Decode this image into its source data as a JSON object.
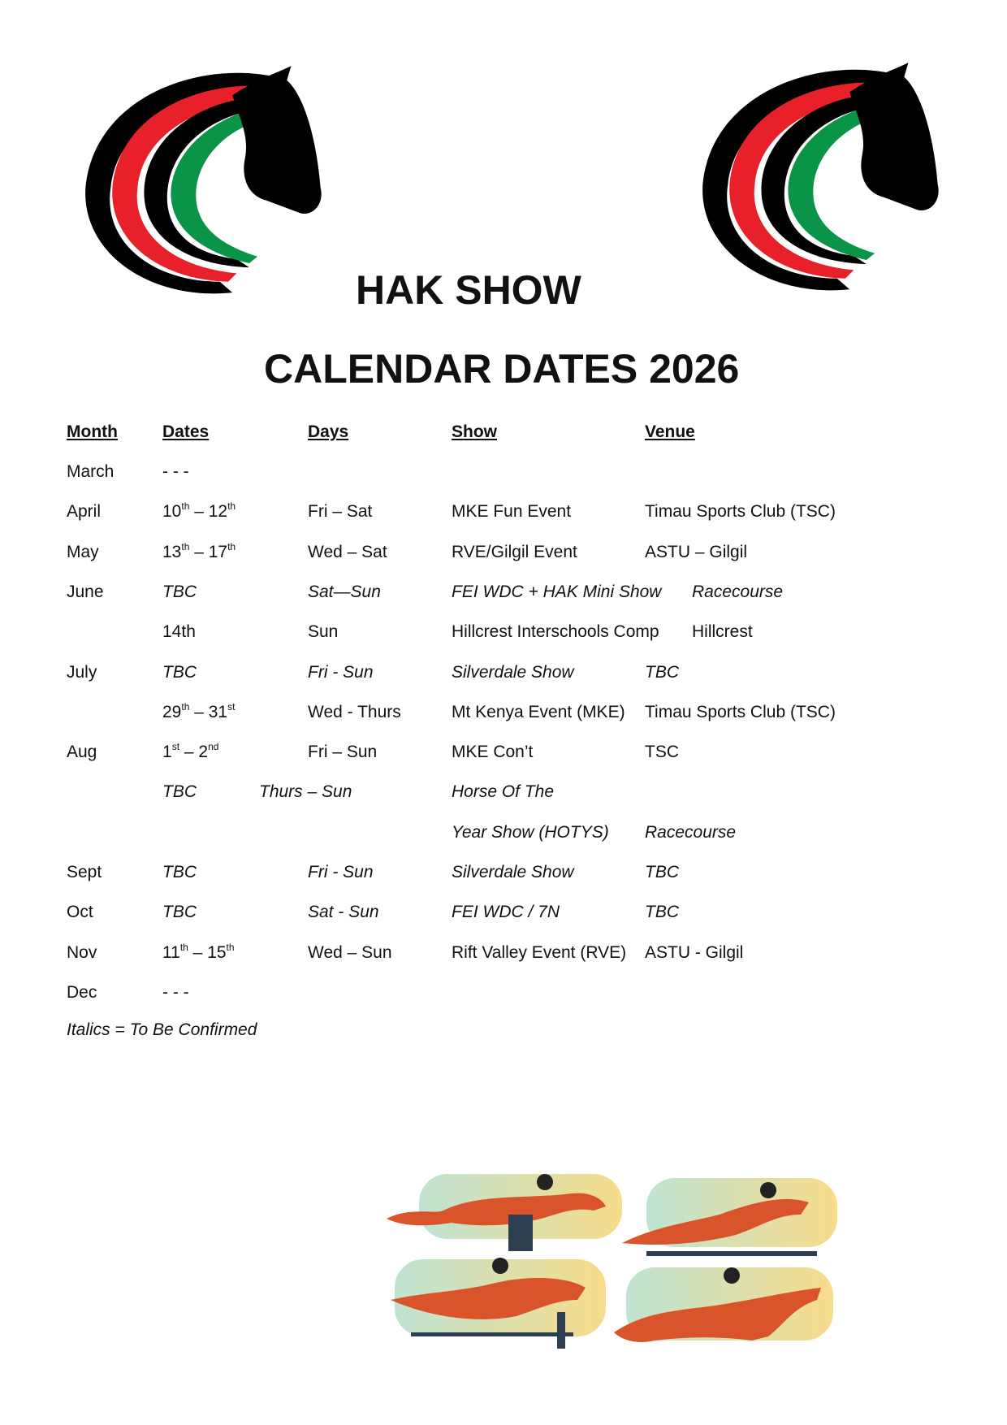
{
  "title_line1": "HAK SHOW",
  "title_line2": "CALENDAR DATES 2026",
  "logo_colors": {
    "black": "#000000",
    "red": "#e8202a",
    "green": "#0a9447"
  },
  "headers": {
    "month": "Month",
    "dates": "Dates",
    "days": "Days",
    "show": "Show",
    "venue": "Venue"
  },
  "rows": [
    {
      "month": "March",
      "dates": "- - -",
      "days": "",
      "show": "",
      "venue": "",
      "italic": false
    },
    {
      "month": "April",
      "d1": "10",
      "s1": "th",
      "sep": " – ",
      "d2": "12",
      "s2": "th",
      "days": "Fri – Sat",
      "show": "MKE Fun Event",
      "venue": "Timau Sports Club (TSC)",
      "italic": false
    },
    {
      "month": "May",
      "d1": "13",
      "s1": "th",
      "sep": " – ",
      "d2": "17",
      "s2": "th",
      "days": "Wed – Sat",
      "show": "RVE/Gilgil Event",
      "venue": "ASTU – Gilgil",
      "italic": false
    },
    {
      "month": "June",
      "dates": "TBC",
      "days": "Sat—Sun",
      "show": "FEI WDC + HAK Mini Show",
      "venue": "Racecourse",
      "italic": true
    },
    {
      "month": "",
      "dates": "14th",
      "days": "Sun",
      "show": "Hillcrest Interschools Comp",
      "venue": "Hillcrest",
      "italic": false
    },
    {
      "month": "July",
      "dates": "TBC",
      "days": "Fri - Sun",
      "show": "Silverdale Show",
      "venue": "TBC",
      "italic": true
    },
    {
      "month": "",
      "d1": "29",
      "s1": "th",
      "sep": " – ",
      "d2": "31",
      "s2": "st",
      "days": "Wed - Thurs",
      "show": "Mt Kenya Event (MKE)",
      "venue": "Timau Sports Club (TSC)",
      "italic": false
    },
    {
      "month": "Aug",
      "d1": "1",
      "s1": "st",
      "sep": " – ",
      "d2": "2",
      "s2": "nd",
      "days": "Fri – Sun",
      "show": "MKE Con’t",
      "venue": "TSC",
      "italic": false
    },
    {
      "month": "",
      "dates": "TBC",
      "days": "Thurs – Sun",
      "show": "Horse Of The",
      "venue": "",
      "italic": true
    },
    {
      "month": "",
      "dates": "",
      "days": "",
      "show": "Year Show (HOTYS)",
      "venue": "Racecourse",
      "italic": true
    },
    {
      "month": "Sept",
      "dates": "TBC",
      "days": "Fri - Sun",
      "show": "Silverdale Show",
      "venue": "TBC",
      "italic": true
    },
    {
      "month": "Oct",
      "dates": "TBC",
      "days": "Sat - Sun",
      "show": "FEI WDC / 7N",
      "venue": "TBC",
      "italic": true
    },
    {
      "month": "Nov",
      "d1": "11",
      "s1": "th",
      "sep": " – ",
      "d2": "15",
      "s2": "th",
      "days": "Wed – Sun",
      "show": "Rift Valley Event (RVE)",
      "venue": "ASTU - Gilgil",
      "italic": false
    },
    {
      "month": "Dec",
      "dates": "- - -",
      "days": "",
      "show": "",
      "venue": "",
      "italic": false
    }
  ],
  "footnote": "Italics = To Be Confirmed"
}
